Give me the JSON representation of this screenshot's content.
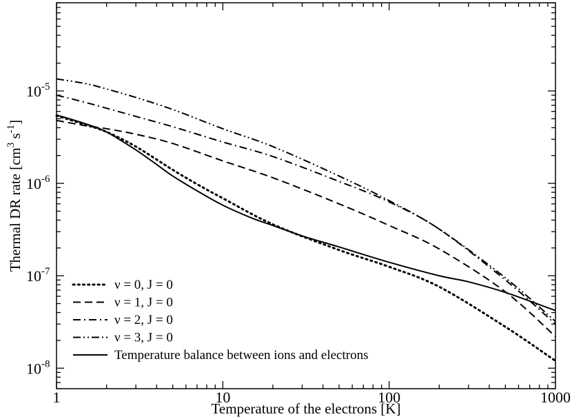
{
  "chart_data": {
    "type": "line",
    "title": "",
    "xlabel": "Temperature of the electrons [K]",
    "ylabel": {
      "base": "Thermal DR rate [cm",
      "exp1": "3",
      "mid": " s",
      "exp2": "-1",
      "end": "]"
    },
    "xscale": "log",
    "yscale": "log",
    "xlim": [
      1,
      1000
    ],
    "ylim": [
      6e-09,
      9e-05
    ],
    "grid": false,
    "legend_position": "bottom-left",
    "xticks": [
      {
        "value": 1,
        "label": "1"
      },
      {
        "value": 10,
        "label": "10"
      },
      {
        "value": 100,
        "label": "100"
      },
      {
        "value": 1000,
        "label": "1000"
      }
    ],
    "yticks": [
      {
        "value": 1e-08,
        "base": "10",
        "exp": "-8"
      },
      {
        "value": 1e-07,
        "base": "10",
        "exp": "-7"
      },
      {
        "value": 1e-06,
        "base": "10",
        "exp": "-6"
      },
      {
        "value": 1e-05,
        "base": "10",
        "exp": "-5"
      }
    ],
    "series": [
      {
        "name": "ν = 0, J = 0",
        "style": "dotted",
        "x": [
          1,
          1.5,
          2,
          3,
          5,
          7,
          10,
          20,
          50,
          100,
          200,
          500,
          1000
        ],
        "y": [
          5.4e-06,
          4.3e-06,
          3.6e-06,
          2.5e-06,
          1.4e-06,
          9.8e-07,
          6.9e-07,
          3.6e-07,
          1.9e-07,
          1.25e-07,
          7.6e-08,
          2.8e-08,
          1.2e-08
        ]
      },
      {
        "name": "ν = 1, J = 0",
        "style": "dashed",
        "x": [
          1,
          1.5,
          2,
          3,
          5,
          10,
          20,
          50,
          100,
          200,
          500,
          1000
        ],
        "y": [
          4.8e-06,
          4.2e-06,
          3.9e-06,
          3.4e-06,
          2.7e-06,
          1.75e-06,
          1.15e-06,
          6e-07,
          3.5e-07,
          1.95e-07,
          6.7e-08,
          2.2e-08
        ]
      },
      {
        "name": "ν = 2, J = 0",
        "style": "dashdot",
        "x": [
          1,
          1.5,
          2,
          3,
          5,
          10,
          20,
          50,
          100,
          200,
          500,
          1000
        ],
        "y": [
          9e-06,
          7.5e-06,
          6.5e-06,
          5.3e-06,
          4.1e-06,
          2.8e-06,
          1.95e-06,
          1.05e-06,
          6.3e-07,
          3.2e-07,
          9e-08,
          3e-08
        ]
      },
      {
        "name": "ν = 3, J = 0",
        "style": "dashdotdot",
        "x": [
          1,
          1.5,
          2,
          3,
          5,
          10,
          20,
          50,
          100,
          200,
          500,
          1000
        ],
        "y": [
          1.35e-05,
          1.2e-05,
          1.05e-05,
          8.5e-06,
          6.3e-06,
          3.9e-06,
          2.5e-06,
          1.2e-06,
          6.5e-07,
          3.2e-07,
          9.5e-08,
          3.2e-08
        ]
      },
      {
        "name": "Temperature balance between ions and electrons",
        "style": "solid",
        "x": [
          1,
          1.5,
          2,
          3,
          4,
          5,
          7,
          10,
          15,
          20,
          30,
          50,
          100,
          200,
          300,
          500,
          1000
        ],
        "y": [
          5.5e-06,
          4.4e-06,
          3.6e-06,
          2.3e-06,
          1.6e-06,
          1.2e-06,
          8.3e-07,
          5.8e-07,
          4.2e-07,
          3.5e-07,
          2.7e-07,
          2.05e-07,
          1.4e-07,
          1e-07,
          8.6e-08,
          6.6e-08,
          4.2e-08
        ]
      }
    ]
  }
}
